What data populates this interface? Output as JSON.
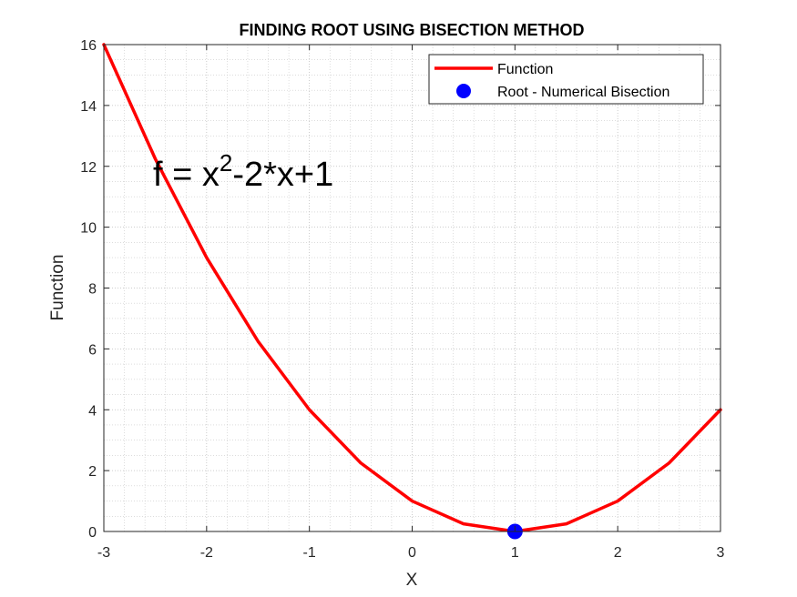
{
  "chart_data": {
    "type": "line",
    "title": "FINDING ROOT USING BISECTION METHOD",
    "xlabel": "X",
    "ylabel": "Function",
    "xlim": [
      -3,
      3
    ],
    "ylim": [
      0,
      16
    ],
    "xticks": [
      -3,
      -2,
      -1,
      0,
      1,
      2,
      3
    ],
    "yticks": [
      0,
      2,
      4,
      6,
      8,
      10,
      12,
      14,
      16
    ],
    "grid": true,
    "minor_grid": true,
    "legend_position": "top-right",
    "annotation": {
      "base": "f = x",
      "superscript": "2",
      "rest": "-2*x+1"
    },
    "series": [
      {
        "name": "Function",
        "kind": "line",
        "color": "#ff0000",
        "x": [
          -3,
          -2.5,
          -2,
          -1.5,
          -1,
          -0.5,
          0,
          0.5,
          1,
          1.5,
          2,
          2.5,
          3
        ],
        "y": [
          16,
          12.25,
          9,
          6.25,
          4,
          2.25,
          1,
          0.25,
          0,
          0.25,
          1,
          2.25,
          4
        ]
      },
      {
        "name": "Root - Numerical Bisection",
        "kind": "marker",
        "color": "#0000ff",
        "x": [
          1
        ],
        "y": [
          0
        ]
      }
    ]
  }
}
